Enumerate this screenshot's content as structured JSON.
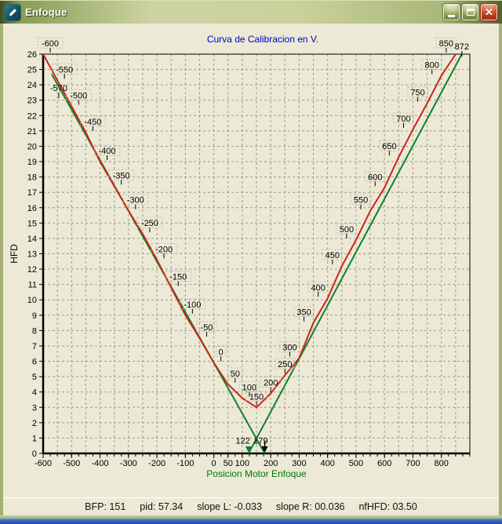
{
  "window": {
    "title": "Enfoque",
    "icons": [
      "app-icon",
      "minimize-icon",
      "maximize-icon",
      "close-icon"
    ],
    "close_glyph": "✕"
  },
  "status": {
    "items": [
      {
        "name": "bfp",
        "text": "BFP: 151"
      },
      {
        "name": "pid",
        "text": "pid: 57.34"
      },
      {
        "name": "slope-l",
        "text": "slope L: -0.033"
      },
      {
        "name": "slope-r",
        "text": "slope R: 00.036"
      },
      {
        "name": "nfhfd",
        "text": "nfHFD: 03.50"
      }
    ]
  },
  "chart_data": {
    "type": "line",
    "title": "Curva de Calibracion en V.",
    "xlabel": "Posicion Motor Enfoque",
    "ylabel": "HFD",
    "xlim": [
      -600,
      900
    ],
    "ylim": [
      0,
      26
    ],
    "grid": {
      "x_start": -550,
      "x_end": 850,
      "x_step": 50,
      "y_step": 1
    },
    "x_minor_tick_step": 25,
    "x_tick_labels": [
      -600,
      -500,
      -400,
      -300,
      -200,
      -100,
      0,
      50,
      100,
      200,
      300,
      400,
      500,
      600,
      700,
      800
    ],
    "y_ticks": {
      "min": 0,
      "max": 26,
      "step": 1
    },
    "series": [
      {
        "name": "slope-left-line",
        "color": "#128030",
        "width": 2,
        "points": [
          [
            -570,
            24.7
          ],
          [
            179,
            0
          ]
        ]
      },
      {
        "name": "slope-right-line",
        "color": "#128030",
        "width": 2,
        "points": [
          [
            122,
            0
          ],
          [
            872,
            26
          ]
        ]
      },
      {
        "name": "hfd-curve",
        "color": "#CC241A",
        "width": 2,
        "point_labels": true,
        "points": [
          [
            -600,
            26.0
          ],
          [
            -550,
            24.3
          ],
          [
            -500,
            22.6
          ],
          [
            -450,
            20.9
          ],
          [
            -400,
            19.0
          ],
          [
            -350,
            17.4
          ],
          [
            -300,
            15.8
          ],
          [
            -250,
            14.3
          ],
          [
            -200,
            12.6
          ],
          [
            -150,
            10.8
          ],
          [
            -100,
            9.0
          ],
          [
            -50,
            7.5
          ],
          [
            0,
            5.9
          ],
          [
            50,
            4.5
          ],
          [
            100,
            3.6
          ],
          [
            150,
            3.0
          ],
          [
            200,
            3.9
          ],
          [
            250,
            5.1
          ],
          [
            300,
            6.2
          ],
          [
            350,
            8.5
          ],
          [
            400,
            10.1
          ],
          [
            450,
            12.2
          ],
          [
            500,
            13.9
          ],
          [
            550,
            15.8
          ],
          [
            600,
            17.3
          ],
          [
            650,
            19.3
          ],
          [
            700,
            21.1
          ],
          [
            750,
            22.8
          ],
          [
            800,
            24.6
          ],
          [
            850,
            26.0
          ]
        ]
      }
    ],
    "annotations": [
      {
        "text": "-570",
        "x": -570,
        "y": 23.6,
        "dx": 9,
        "anchor": "middle",
        "tick_below": true
      },
      {
        "text": "872",
        "x": 872,
        "y": 26.3,
        "dx": 0,
        "anchor": "middle",
        "tick_below": true
      },
      {
        "text": "122",
        "x": 122,
        "y": 0.65,
        "dx": 2,
        "anchor": "end"
      },
      {
        "text": "179",
        "x": 179,
        "y": 0.65,
        "dx": 4,
        "anchor": "end"
      }
    ],
    "arrows": [
      {
        "x": 122,
        "color": "#128030",
        "stem": false
      },
      {
        "x": 179,
        "color": "#000000",
        "stem": true
      }
    ]
  }
}
